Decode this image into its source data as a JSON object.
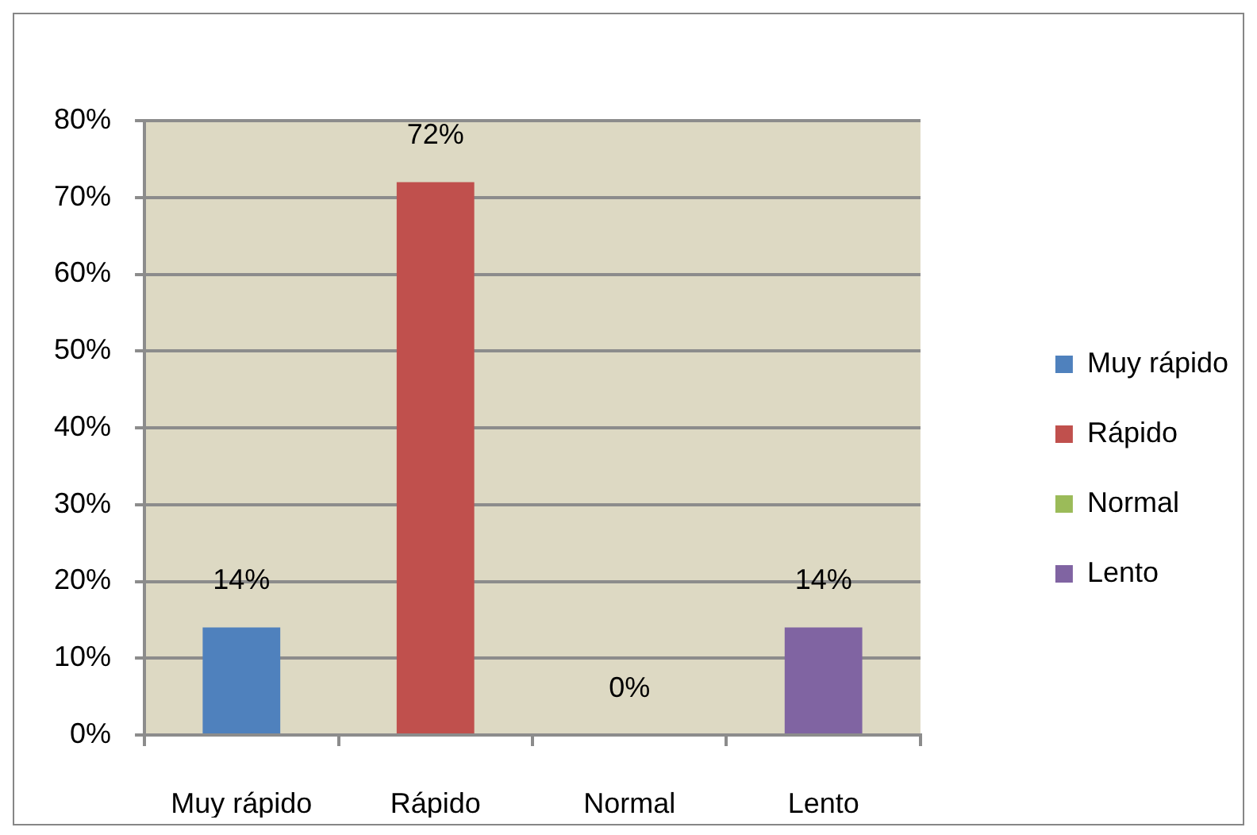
{
  "chart_data": {
    "type": "bar",
    "categories": [
      "Muy rápido",
      "Rápido",
      "Normal",
      "Lento"
    ],
    "series": [
      {
        "name": "Muy rápido",
        "color": "#4f81bd",
        "values": [
          14,
          null,
          null,
          null
        ],
        "value_labels": [
          "14%",
          null,
          null,
          null
        ]
      },
      {
        "name": "Rápido",
        "color": "#c0504d",
        "values": [
          null,
          72,
          null,
          null
        ],
        "value_labels": [
          null,
          "72%",
          null,
          null
        ]
      },
      {
        "name": "Normal",
        "color": "#9bbb59",
        "values": [
          null,
          null,
          0,
          null
        ],
        "value_labels": [
          null,
          null,
          "0%",
          null
        ]
      },
      {
        "name": "Lento",
        "color": "#8064a2",
        "values": [
          null,
          null,
          null,
          14
        ],
        "value_labels": [
          null,
          null,
          null,
          "14%"
        ]
      }
    ],
    "ylim": [
      0,
      80
    ],
    "yticks": [
      {
        "value": 0,
        "label": "0%"
      },
      {
        "value": 10,
        "label": "10%"
      },
      {
        "value": 20,
        "label": "20%"
      },
      {
        "value": 30,
        "label": "30%"
      },
      {
        "value": 40,
        "label": "40%"
      },
      {
        "value": 50,
        "label": "50%"
      },
      {
        "value": 60,
        "label": "60%"
      },
      {
        "value": 70,
        "label": "70%"
      },
      {
        "value": 80,
        "label": "80%"
      }
    ],
    "grid": "y",
    "legend": "right"
  }
}
